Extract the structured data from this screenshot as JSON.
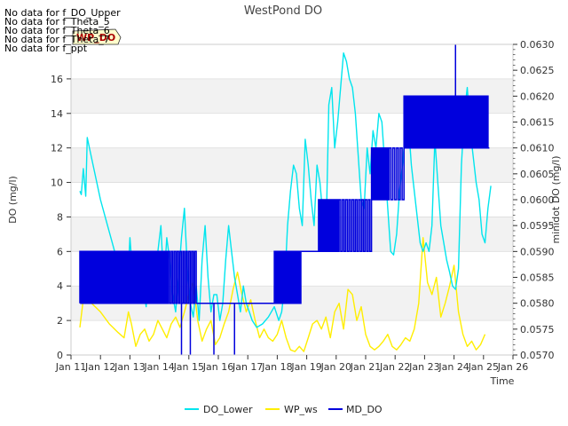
{
  "chart_data": {
    "type": "line",
    "title": "WestPond DO",
    "xlabel": "Time",
    "ylabel": "DO (mg/l)",
    "ylabel_right": "minidot DO (mg/l)",
    "xlim": [
      11,
      26
    ],
    "ylim": [
      0,
      18
    ],
    "ylim_right": [
      0.057,
      0.063
    ],
    "x_ticks": [
      11,
      12,
      13,
      14,
      15,
      16,
      17,
      18,
      19,
      20,
      21,
      22,
      23,
      24,
      25,
      26
    ],
    "x_tick_labels": [
      "Jan 11",
      "Jan 12",
      "Jan 13",
      "Jan 14",
      "Jan 15",
      "Jan 16",
      "Jan 17",
      "Jan 18",
      "Jan 19",
      "Jan 20",
      "Jan 21",
      "Jan 22",
      "Jan 23",
      "Jan 24",
      "Jan 25",
      "Jan 26"
    ],
    "y_ticks": [
      0,
      2,
      4,
      6,
      8,
      10,
      12,
      14,
      16
    ],
    "y_tick_labels": [
      "0",
      "2",
      "4",
      "6",
      "8",
      "10",
      "12",
      "14",
      "16"
    ],
    "y_ticks_right": [
      0.057,
      0.0575,
      0.058,
      0.0585,
      0.059,
      0.0595,
      0.06,
      0.0605,
      0.061,
      0.0615,
      0.062,
      0.0625,
      0.063
    ],
    "y_tick_labels_right": [
      "0.0570",
      "0.0575",
      "0.0580",
      "0.0585",
      "0.0590",
      "0.0595",
      "0.0600",
      "0.0605",
      "0.0610",
      "0.0615",
      "0.0620",
      "0.0625",
      "0.0630"
    ],
    "no_data_notes": [
      "No data for f_DO_Upper",
      "No data for f_Theta_5",
      "No data for f_Theta_6",
      "No data for f_Theta_7",
      "No data for f_ppt"
    ],
    "badge": "WP_DO",
    "legend_position": "bottom-center",
    "series": [
      {
        "name": "DO_Lower",
        "color": "#00e5ee",
        "axis": "left",
        "x": [
          11.3,
          11.35,
          11.42,
          11.5,
          11.55,
          11.65,
          12.0,
          12.4,
          12.8,
          12.95,
          13.0,
          13.1,
          13.2,
          13.3,
          13.45,
          13.55,
          13.65,
          13.75,
          13.85,
          13.95,
          14.05,
          14.15,
          14.25,
          14.35,
          14.45,
          14.55,
          14.65,
          14.75,
          14.85,
          14.95,
          15.05,
          15.15,
          15.25,
          15.35,
          15.45,
          15.55,
          15.65,
          15.75,
          15.85,
          15.95,
          16.05,
          16.15,
          16.25,
          16.35,
          16.45,
          16.55,
          16.65,
          16.75,
          16.85,
          16.95,
          17.05,
          17.15,
          17.3,
          17.5,
          17.7,
          17.9,
          18.05,
          18.15,
          18.25,
          18.35,
          18.45,
          18.55,
          18.65,
          18.75,
          18.85,
          18.95,
          19.05,
          19.15,
          19.25,
          19.35,
          19.45,
          19.55,
          19.65,
          19.75,
          19.85,
          19.95,
          20.05,
          20.15,
          20.25,
          20.35,
          20.45,
          20.55,
          20.65,
          20.75,
          20.85,
          20.95,
          21.05,
          21.15,
          21.25,
          21.35,
          21.45,
          21.55,
          21.65,
          21.75,
          21.85,
          21.95,
          22.05,
          22.15,
          22.25,
          22.35,
          22.45,
          22.55,
          22.65,
          22.75,
          22.85,
          22.95,
          23.05,
          23.15,
          23.25,
          23.35,
          23.45,
          23.55,
          23.65,
          23.75,
          23.85,
          23.95,
          24.05,
          24.15,
          24.25,
          24.35,
          24.45,
          24.55,
          24.65,
          24.75,
          24.85,
          24.95,
          25.05,
          25.15,
          25.25
        ],
        "y": [
          9.5,
          9.3,
          10.8,
          9.2,
          12.6,
          11.8,
          9.0,
          6.5,
          4.0,
          5.0,
          6.8,
          4.5,
          3.5,
          5.5,
          4.0,
          2.8,
          5.8,
          3.5,
          5.0,
          6.0,
          7.5,
          4.0,
          6.8,
          5.5,
          3.5,
          2.5,
          4.5,
          6.8,
          8.5,
          5.0,
          3.0,
          2.2,
          4.0,
          2.0,
          5.5,
          7.5,
          4.5,
          2.5,
          3.5,
          3.5,
          2.0,
          3.0,
          5.5,
          7.5,
          6.0,
          4.5,
          3.5,
          2.5,
          4.0,
          3.0,
          2.5,
          2.0,
          1.6,
          1.8,
          2.2,
          2.8,
          2.0,
          2.5,
          4.0,
          7.5,
          9.5,
          11.0,
          10.5,
          8.5,
          7.5,
          12.5,
          11.0,
          9.0,
          7.5,
          11.0,
          10.0,
          8.0,
          6.5,
          14.5,
          15.5,
          12.0,
          13.5,
          15.5,
          17.5,
          17.0,
          16.0,
          15.5,
          14.0,
          11.5,
          9.0,
          8.5,
          12.0,
          10.5,
          13.0,
          12.0,
          14.0,
          13.5,
          11.0,
          8.5,
          6.0,
          5.8,
          7.0,
          9.5,
          11.0,
          13.0,
          13.5,
          11.0,
          9.5,
          8.0,
          6.5,
          6.0,
          6.5,
          6.0,
          7.5,
          12.5,
          10.0,
          7.5,
          6.5,
          5.5,
          4.8,
          4.0,
          3.8,
          5.0,
          11.0,
          14.0,
          15.5,
          13.0,
          11.5,
          10.0,
          9.0,
          7.0,
          6.5,
          8.5,
          9.8
        ]
      },
      {
        "name": "WP_ws",
        "color": "#ffee00",
        "axis": "left",
        "x": [
          11.3,
          11.4,
          11.55,
          11.7,
          12.0,
          12.3,
          12.6,
          12.8,
          12.95,
          13.05,
          13.2,
          13.35,
          13.5,
          13.65,
          13.8,
          13.95,
          14.1,
          14.25,
          14.4,
          14.55,
          14.7,
          14.85,
          15.0,
          15.15,
          15.3,
          15.45,
          15.6,
          15.75,
          15.9,
          16.05,
          16.2,
          16.35,
          16.5,
          16.65,
          16.8,
          16.95,
          17.1,
          17.25,
          17.4,
          17.55,
          17.7,
          17.85,
          18.0,
          18.15,
          18.3,
          18.45,
          18.6,
          18.75,
          18.9,
          19.05,
          19.2,
          19.35,
          19.5,
          19.65,
          19.8,
          19.95,
          20.1,
          20.25,
          20.4,
          20.55,
          20.7,
          20.85,
          21.0,
          21.15,
          21.3,
          21.45,
          21.6,
          21.75,
          21.9,
          22.05,
          22.2,
          22.35,
          22.5,
          22.65,
          22.8,
          22.95,
          23.1,
          23.25,
          23.4,
          23.55,
          23.7,
          23.85,
          24.0,
          24.15,
          24.3,
          24.45,
          24.6,
          24.75,
          24.9,
          25.05
        ],
        "y": [
          1.6,
          3.0,
          3.5,
          3.0,
          2.5,
          1.8,
          1.3,
          1.0,
          2.5,
          1.8,
          0.5,
          1.2,
          1.5,
          0.8,
          1.2,
          2.0,
          1.5,
          1.0,
          1.8,
          2.2,
          1.6,
          2.5,
          3.5,
          4.2,
          2.0,
          0.8,
          1.5,
          2.0,
          0.6,
          1.0,
          1.8,
          2.5,
          3.8,
          4.8,
          3.5,
          2.5,
          3.2,
          2.0,
          1.0,
          1.5,
          1.0,
          0.8,
          1.2,
          2.0,
          1.0,
          0.3,
          0.2,
          0.5,
          0.2,
          1.0,
          1.8,
          2.0,
          1.5,
          2.2,
          1.0,
          2.5,
          3.0,
          1.5,
          3.8,
          3.5,
          2.0,
          2.8,
          1.2,
          0.5,
          0.3,
          0.5,
          0.8,
          1.2,
          0.5,
          0.3,
          0.6,
          1.0,
          0.8,
          1.5,
          3.0,
          6.8,
          4.2,
          3.5,
          4.5,
          2.2,
          3.0,
          4.0,
          5.2,
          2.5,
          1.2,
          0.5,
          0.8,
          0.3,
          0.6,
          1.2
        ]
      },
      {
        "name": "MD_DO",
        "color": "#0000dd",
        "axis": "right",
        "style": "step-oscillation",
        "segments": [
          {
            "x0": 11.3,
            "x1": 12.7,
            "low": 0.058,
            "high": 0.059,
            "n": 22
          },
          {
            "x0": 12.7,
            "x1": 14.3,
            "low": 0.058,
            "high": 0.059,
            "n": 18
          },
          {
            "x0": 14.3,
            "x1": 15.3,
            "low": 0.058,
            "high": 0.059,
            "n": 10
          },
          {
            "x0": 15.3,
            "x1": 16.9,
            "low": 0.058,
            "high": 0.058,
            "n": 1
          },
          {
            "x0": 16.9,
            "x1": 17.9,
            "low": 0.058,
            "high": 0.058,
            "n": 1
          },
          {
            "x0": 17.9,
            "x1": 18.8,
            "low": 0.058,
            "high": 0.059,
            "n": 14
          },
          {
            "x0": 18.8,
            "x1": 19.4,
            "low": 0.059,
            "high": 0.059,
            "n": 1
          },
          {
            "x0": 19.4,
            "x1": 20.1,
            "low": 0.059,
            "high": 0.06,
            "n": 14
          },
          {
            "x0": 20.1,
            "x1": 21.2,
            "low": 0.059,
            "high": 0.06,
            "n": 10
          },
          {
            "x0": 21.2,
            "x1": 21.8,
            "low": 0.06,
            "high": 0.061,
            "n": 9
          },
          {
            "x0": 21.8,
            "x1": 22.3,
            "low": 0.06,
            "high": 0.061,
            "n": 4
          },
          {
            "x0": 22.3,
            "x1": 23.2,
            "low": 0.061,
            "high": 0.062,
            "n": 16
          },
          {
            "x0": 23.2,
            "x1": 24.3,
            "low": 0.061,
            "high": 0.062,
            "n": 16
          },
          {
            "x0": 24.3,
            "x1": 25.2,
            "low": 0.061,
            "high": 0.062,
            "n": 10
          }
        ],
        "dips": [
          {
            "x": 14.75,
            "y": 0.057
          },
          {
            "x": 15.05,
            "y": 0.057
          },
          {
            "x": 15.85,
            "y": 0.057
          },
          {
            "x": 16.55,
            "y": 0.057
          },
          {
            "x": 21.25,
            "y": 0.0608
          },
          {
            "x": 24.05,
            "y": 0.063
          }
        ]
      }
    ]
  }
}
